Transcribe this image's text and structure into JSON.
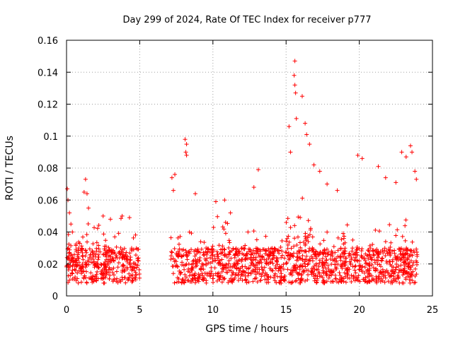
{
  "chart_data": {
    "type": "scatter",
    "title": "Day 299 of 2024, Rate Of TEC Index for receiver p777",
    "xlabel": "GPS time / hours",
    "ylabel": "ROTI / TECUs",
    "xlim": [
      0,
      25
    ],
    "ylim": [
      0,
      0.16
    ],
    "x_ticks": [
      "0",
      "5",
      "10",
      "15",
      "20",
      "25"
    ],
    "y_ticks": [
      "0",
      "0.02",
      "0.04",
      "0.06",
      "0.08",
      "0.1",
      "0.12",
      "0.14",
      "0.16"
    ],
    "grid": true,
    "marker": "+",
    "color": "#ff0000",
    "data_gap_hours": [
      5.0,
      7.1
    ],
    "series": [
      {
        "points": [
          [
            0.05,
            0.067
          ],
          [
            0.1,
            0.06
          ],
          [
            0.2,
            0.052
          ],
          [
            0.3,
            0.045
          ],
          [
            0.4,
            0.04
          ],
          [
            1.2,
            0.065
          ],
          [
            1.3,
            0.073
          ],
          [
            1.4,
            0.064
          ],
          [
            1.5,
            0.055
          ],
          [
            2.5,
            0.05
          ],
          [
            3.0,
            0.048
          ],
          [
            3.8,
            0.05
          ],
          [
            4.3,
            0.049
          ],
          [
            7.2,
            0.074
          ],
          [
            7.4,
            0.076
          ],
          [
            7.3,
            0.066
          ],
          [
            8.1,
            0.098
          ],
          [
            8.2,
            0.095
          ],
          [
            8.15,
            0.09
          ],
          [
            8.2,
            0.088
          ],
          [
            8.8,
            0.064
          ],
          [
            10.2,
            0.059
          ],
          [
            10.8,
            0.06
          ],
          [
            11.2,
            0.052
          ],
          [
            12.8,
            0.068
          ],
          [
            13.1,
            0.079
          ],
          [
            15.2,
            0.106
          ],
          [
            15.3,
            0.09
          ],
          [
            15.6,
            0.147
          ],
          [
            15.55,
            0.138
          ],
          [
            15.6,
            0.132
          ],
          [
            15.65,
            0.127
          ],
          [
            15.7,
            0.111
          ],
          [
            16.1,
            0.125
          ],
          [
            16.3,
            0.108
          ],
          [
            16.4,
            0.101
          ],
          [
            16.6,
            0.095
          ],
          [
            16.9,
            0.082
          ],
          [
            17.3,
            0.078
          ],
          [
            17.8,
            0.07
          ],
          [
            18.5,
            0.066
          ],
          [
            19.9,
            0.088
          ],
          [
            20.2,
            0.086
          ],
          [
            21.3,
            0.081
          ],
          [
            21.8,
            0.074
          ],
          [
            22.5,
            0.071
          ],
          [
            22.9,
            0.09
          ],
          [
            23.2,
            0.087
          ],
          [
            23.5,
            0.094
          ],
          [
            23.6,
            0.09
          ],
          [
            23.8,
            0.078
          ],
          [
            23.9,
            0.073
          ]
        ]
      }
    ]
  }
}
